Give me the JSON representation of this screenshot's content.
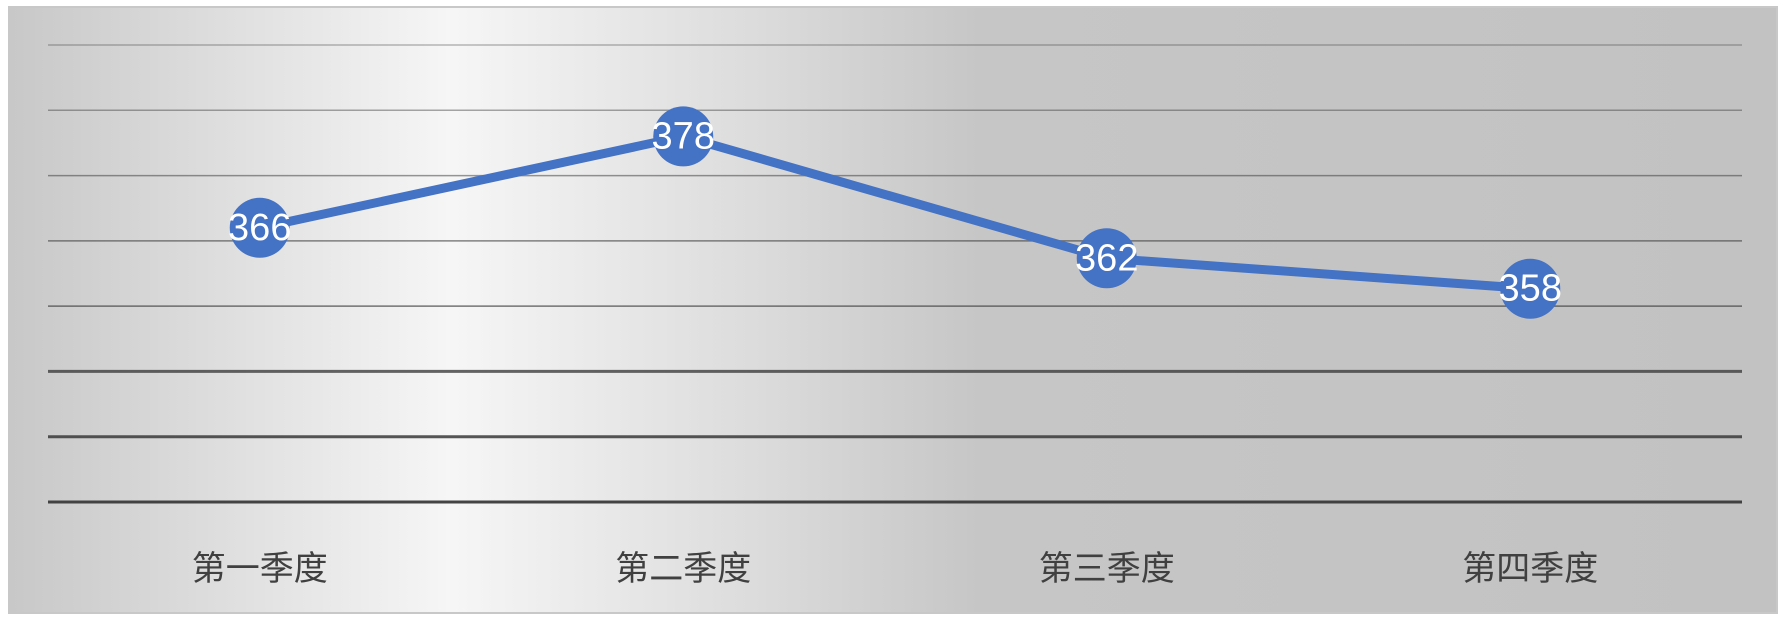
{
  "chart_data": {
    "type": "line",
    "categories": [
      "第一季度",
      "第二季度",
      "第三季度",
      "第四季度"
    ],
    "series": [
      {
        "values": [
          366,
          378,
          362,
          358
        ]
      }
    ],
    "data_labels": [
      "366",
      "378",
      "362",
      "358"
    ],
    "ylim": [
      330,
      390
    ],
    "grid": true,
    "legend": "none",
    "colors": {
      "line": "#4472C4",
      "marker": "#4472C4",
      "data_label": "#FFFFFF",
      "gridline": "#3a3a3a"
    }
  }
}
